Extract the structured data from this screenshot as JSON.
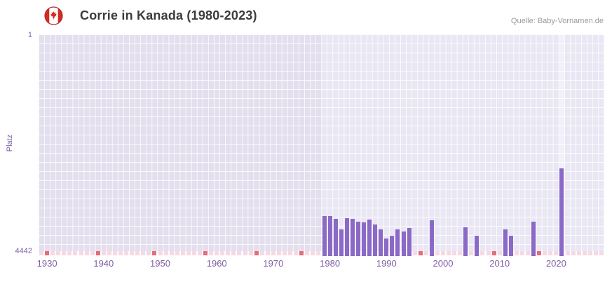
{
  "header": {
    "title": "Corrie in Kanada (1980-2023)",
    "source": "Quelle: Baby-Vornamen.de",
    "flag_icon": "canada-flag-icon"
  },
  "axes": {
    "y_label": "Platz",
    "y_tick_top": "1",
    "y_tick_bottom": "4442",
    "x_ticks": [
      1930,
      1940,
      1950,
      1960,
      1970,
      1980,
      1990,
      2000,
      2010,
      2020
    ]
  },
  "chart_data": {
    "type": "bar",
    "title": "Corrie in Kanada (1980-2023)",
    "xlabel": "",
    "ylabel": "Platz",
    "x_range": [
      1929,
      2028
    ],
    "y_axis": {
      "top": 1,
      "bottom": 4442,
      "inverted": true
    },
    "grid": true,
    "shade_before_year": 1979,
    "highlight_column_year": 2021,
    "points": [
      {
        "year": 1979,
        "rank": 3720
      },
      {
        "year": 1980,
        "rank": 3730
      },
      {
        "year": 1981,
        "rank": 3780
      },
      {
        "year": 1982,
        "rank": 3990
      },
      {
        "year": 1983,
        "rank": 3770
      },
      {
        "year": 1984,
        "rank": 3780
      },
      {
        "year": 1985,
        "rank": 3840
      },
      {
        "year": 1986,
        "rank": 3850
      },
      {
        "year": 1987,
        "rank": 3800
      },
      {
        "year": 1988,
        "rank": 3890
      },
      {
        "year": 1989,
        "rank": 3990
      },
      {
        "year": 1990,
        "rank": 4190
      },
      {
        "year": 1991,
        "rank": 4120
      },
      {
        "year": 1992,
        "rank": 4000
      },
      {
        "year": 1993,
        "rank": 4040
      },
      {
        "year": 1994,
        "rank": 3970
      },
      {
        "year": 1998,
        "rank": 3810
      },
      {
        "year": 2004,
        "rank": 3960
      },
      {
        "year": 2006,
        "rank": 4130
      },
      {
        "year": 2011,
        "rank": 4000
      },
      {
        "year": 2012,
        "rank": 4120
      },
      {
        "year": 2016,
        "rank": 3840
      },
      {
        "year": 2021,
        "rank": 2750
      }
    ],
    "red_marker_years": [
      1930,
      1939,
      1949,
      1958,
      1967,
      1975,
      1996,
      2009,
      2017
    ],
    "colors": {
      "bar": "#8b69c6",
      "marker_pink": "#f6d9e3",
      "marker_red": "#e86c77",
      "axis_text": "#7e5fa5",
      "plot_bg_light": "#eae7f4",
      "plot_bg_dark": "#e3dfee",
      "highlight_col": "#f2f0f9",
      "title_text": "#3c3c3c",
      "source_text": "#9b9b9b"
    }
  }
}
